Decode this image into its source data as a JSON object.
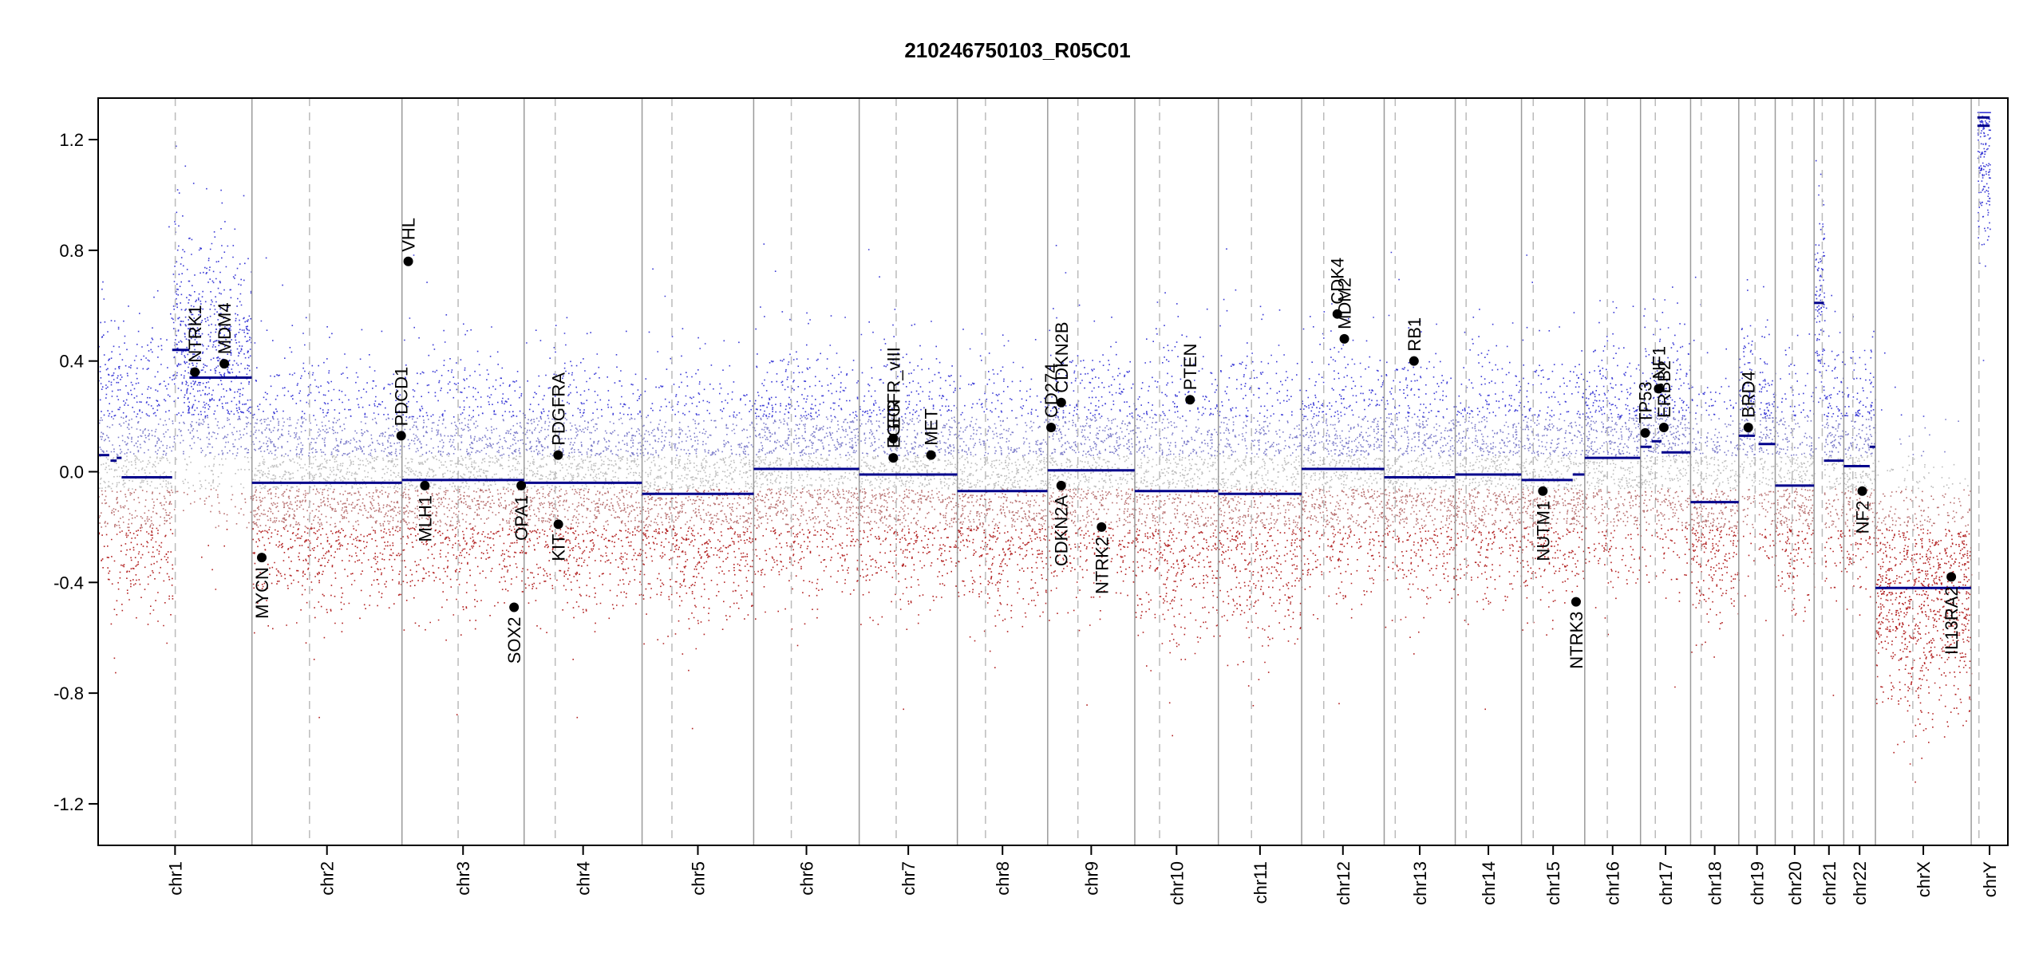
{
  "chart_data": {
    "type": "scatter",
    "title": "210246750103_R05C01",
    "xlabel": "",
    "ylabel": "",
    "ylim": [
      -1.35,
      1.35
    ],
    "y_ticks": [
      1.2,
      0.8,
      0.4,
      0.0,
      -0.4,
      -0.8,
      -1.2
    ],
    "y_tick_labels": [
      "1.2",
      "0.8",
      "0.4",
      "0.0",
      "-0.4",
      "-0.8",
      "-1.2"
    ],
    "grid": false,
    "colors": {
      "segment": "#00008b",
      "gain": "#3a3ad6",
      "loss": "#b22222",
      "neutral": "#bdbdbd",
      "boundary": "#9a9a9a",
      "centromere": "#bbbbbb"
    },
    "chromosomes": [
      {
        "name": "chr1",
        "label": "chr1",
        "start": 0.0,
        "end": 249.3,
        "centromere": 125.0
      },
      {
        "name": "chr2",
        "label": "chr2",
        "start": 249.3,
        "end": 492.5,
        "centromere": 93.3
      },
      {
        "name": "chr3",
        "label": "chr3",
        "start": 492.5,
        "end": 690.5,
        "centromere": 91.0
      },
      {
        "name": "chr4",
        "label": "chr4",
        "start": 690.5,
        "end": 881.7,
        "centromere": 50.4
      },
      {
        "name": "chr5",
        "label": "chr5",
        "start": 881.7,
        "end": 1062.6,
        "centromere": 48.4
      },
      {
        "name": "chr6",
        "label": "chr6",
        "start": 1062.6,
        "end": 1233.7,
        "centromere": 61.0
      },
      {
        "name": "chr7",
        "label": "chr7",
        "start": 1233.7,
        "end": 1392.8,
        "centromere": 59.9
      },
      {
        "name": "chr8",
        "label": "chr8",
        "start": 1392.8,
        "end": 1539.2,
        "centromere": 45.6
      },
      {
        "name": "chr9",
        "label": "chr9",
        "start": 1539.2,
        "end": 1680.4,
        "centromere": 49.0
      },
      {
        "name": "chr10",
        "label": "chr10",
        "start": 1680.4,
        "end": 1815.9,
        "centromere": 40.2
      },
      {
        "name": "chr11",
        "label": "chr11",
        "start": 1815.9,
        "end": 1950.9,
        "centromere": 53.7
      },
      {
        "name": "chr12",
        "label": "chr12",
        "start": 1950.9,
        "end": 2084.7,
        "centromere": 35.8
      },
      {
        "name": "chr13",
        "label": "chr13",
        "start": 2084.7,
        "end": 2199.9,
        "centromere": 17.9
      },
      {
        "name": "chr14",
        "label": "chr14",
        "start": 2199.9,
        "end": 2307.3,
        "centromere": 17.6
      },
      {
        "name": "chr15",
        "label": "chr15",
        "start": 2307.3,
        "end": 2409.8,
        "centromere": 19.0
      },
      {
        "name": "chr16",
        "label": "chr16",
        "start": 2409.8,
        "end": 2500.2,
        "centromere": 36.6
      },
      {
        "name": "chr17",
        "label": "chr17",
        "start": 2500.2,
        "end": 2581.4,
        "centromere": 24.0
      },
      {
        "name": "chr18",
        "label": "chr18",
        "start": 2581.4,
        "end": 2659.5,
        "centromere": 17.2
      },
      {
        "name": "chr19",
        "label": "chr19",
        "start": 2659.5,
        "end": 2718.6,
        "centromere": 26.5
      },
      {
        "name": "chr20",
        "label": "chr20",
        "start": 2718.6,
        "end": 2781.6,
        "centromere": 27.5
      },
      {
        "name": "chr21",
        "label": "chr21",
        "start": 2781.6,
        "end": 2829.7,
        "centromere": 13.2
      },
      {
        "name": "chr22",
        "label": "chr22",
        "start": 2829.7,
        "end": 2881.0,
        "centromere": 14.7
      },
      {
        "name": "chrX",
        "label": "chrX",
        "start": 2881.0,
        "end": 3036.3,
        "centromere": 60.6
      },
      {
        "name": "chrY",
        "label": "chrY",
        "start": 3036.3,
        "end": 3095.7,
        "centromere": 12.5
      }
    ],
    "segments": [
      {
        "chr": "chr1",
        "start": 0,
        "end": 18,
        "value": 0.06
      },
      {
        "chr": "chr1",
        "start": 20,
        "end": 30,
        "value": 0.04
      },
      {
        "chr": "chr1",
        "start": 30,
        "end": 38,
        "value": 0.05
      },
      {
        "chr": "chr1",
        "start": 38,
        "end": 120,
        "value": -0.02
      },
      {
        "chr": "chr1",
        "start": 120,
        "end": 148,
        "value": 0.44
      },
      {
        "chr": "chr1",
        "start": 148,
        "end": 249,
        "value": 0.34
      },
      {
        "chr": "chr2",
        "start": 0,
        "end": 243,
        "value": -0.04
      },
      {
        "chr": "chr3",
        "start": 0,
        "end": 198,
        "value": -0.03
      },
      {
        "chr": "chr4",
        "start": 0,
        "end": 191,
        "value": -0.04
      },
      {
        "chr": "chr5",
        "start": 0,
        "end": 181,
        "value": -0.08
      },
      {
        "chr": "chr6",
        "start": 0,
        "end": 171,
        "value": 0.01
      },
      {
        "chr": "chr7",
        "start": 0,
        "end": 159,
        "value": -0.01
      },
      {
        "chr": "chr8",
        "start": 0,
        "end": 146,
        "value": -0.07
      },
      {
        "chr": "chr9",
        "start": 0,
        "end": 141,
        "value": 0.005
      },
      {
        "chr": "chr10",
        "start": 0,
        "end": 135,
        "value": -0.07
      },
      {
        "chr": "chr11",
        "start": 0,
        "end": 135,
        "value": -0.08
      },
      {
        "chr": "chr12",
        "start": 0,
        "end": 134,
        "value": 0.01
      },
      {
        "chr": "chr13",
        "start": 0,
        "end": 115,
        "value": -0.02
      },
      {
        "chr": "chr14",
        "start": 0,
        "end": 107,
        "value": -0.01
      },
      {
        "chr": "chr15",
        "start": 0,
        "end": 83,
        "value": -0.03
      },
      {
        "chr": "chr15",
        "start": 83,
        "end": 102,
        "value": -0.01
      },
      {
        "chr": "chr16",
        "start": 0,
        "end": 90,
        "value": 0.05
      },
      {
        "chr": "chr17",
        "start": 0,
        "end": 18,
        "value": 0.09
      },
      {
        "chr": "chr17",
        "start": 18,
        "end": 34,
        "value": 0.11
      },
      {
        "chr": "chr17",
        "start": 34,
        "end": 81,
        "value": 0.07
      },
      {
        "chr": "chr18",
        "start": 0,
        "end": 78,
        "value": -0.11
      },
      {
        "chr": "chr19",
        "start": 0,
        "end": 26,
        "value": 0.13
      },
      {
        "chr": "chr19",
        "start": 32,
        "end": 59,
        "value": 0.1
      },
      {
        "chr": "chr20",
        "start": 0,
        "end": 63,
        "value": -0.05
      },
      {
        "chr": "chr21",
        "start": 0,
        "end": 16,
        "value": 0.61
      },
      {
        "chr": "chr21",
        "start": 16,
        "end": 48,
        "value": 0.04
      },
      {
        "chr": "chr22",
        "start": 0,
        "end": 42,
        "value": 0.02
      },
      {
        "chr": "chr22",
        "start": 42,
        "end": 51,
        "value": 0.09
      },
      {
        "chr": "chrX",
        "start": 0,
        "end": 155,
        "value": -0.42
      },
      {
        "chr": "chrY",
        "start": 10,
        "end": 30,
        "value": 1.28
      },
      {
        "chr": "chrY",
        "start": 10,
        "end": 30,
        "value": 1.25
      }
    ],
    "genes": [
      {
        "name": "NTRK1",
        "chr": "chr1",
        "pos": 156.8,
        "value": 0.36,
        "label_side": "above"
      },
      {
        "name": "MDM4",
        "chr": "chr1",
        "pos": 204.5,
        "value": 0.39,
        "label_side": "above"
      },
      {
        "name": "MYCN",
        "chr": "chr2",
        "pos": 15.9,
        "value": -0.31,
        "label_side": "below"
      },
      {
        "name": "PDCD1",
        "chr": "chr2",
        "pos": 241.9,
        "value": 0.13,
        "label_side": "above"
      },
      {
        "name": "VHL",
        "chr": "chr3",
        "pos": 10.2,
        "value": 0.76,
        "label_side": "above"
      },
      {
        "name": "MLH1",
        "chr": "chr3",
        "pos": 37.1,
        "value": -0.05,
        "label_side": "below"
      },
      {
        "name": "SOX2",
        "chr": "chr3",
        "pos": 181.7,
        "value": -0.49,
        "label_side": "below"
      },
      {
        "name": "OPA1",
        "chr": "chr3",
        "pos": 193.3,
        "value": -0.05,
        "label_side": "below"
      },
      {
        "name": "PDGFRA",
        "chr": "chr4",
        "pos": 55.1,
        "value": 0.06,
        "label_side": "above"
      },
      {
        "name": "KIT",
        "chr": "chr4",
        "pos": 55.5,
        "value": -0.19,
        "label_side": "below"
      },
      {
        "name": "EGFR",
        "chr": "chr7",
        "pos": 55.2,
        "value": 0.05,
        "label_side": "above"
      },
      {
        "name": "EGFR_vIII",
        "chr": "chr7",
        "pos": 55.2,
        "value": 0.12,
        "label_side": "above"
      },
      {
        "name": "MET",
        "chr": "chr7",
        "pos": 116.4,
        "value": 0.06,
        "label_side": "above"
      },
      {
        "name": "CD274",
        "chr": "chr9",
        "pos": 5.5,
        "value": 0.16,
        "label_side": "above"
      },
      {
        "name": "CDKN2B",
        "chr": "chr9",
        "pos": 22.0,
        "value": 0.25,
        "label_side": "above"
      },
      {
        "name": "CDKN2A",
        "chr": "chr9",
        "pos": 21.9,
        "value": -0.05,
        "label_side": "below"
      },
      {
        "name": "NTRK2",
        "chr": "chr9",
        "pos": 87.3,
        "value": -0.2,
        "label_side": "below"
      },
      {
        "name": "PTEN",
        "chr": "chr10",
        "pos": 89.6,
        "value": 0.26,
        "label_side": "above"
      },
      {
        "name": "CDK4",
        "chr": "chr12",
        "pos": 57.8,
        "value": 0.57,
        "label_side": "above"
      },
      {
        "name": "MDM2",
        "chr": "chr12",
        "pos": 69.2,
        "value": 0.48,
        "label_side": "above"
      },
      {
        "name": "RB1",
        "chr": "chr13",
        "pos": 48.3,
        "value": 0.4,
        "label_side": "above"
      },
      {
        "name": "NUTM1",
        "chr": "chr15",
        "pos": 34.6,
        "value": -0.07,
        "label_side": "below"
      },
      {
        "name": "NTRK3",
        "chr": "chr15",
        "pos": 88.4,
        "value": -0.47,
        "label_side": "below"
      },
      {
        "name": "TP53",
        "chr": "chr17",
        "pos": 7.6,
        "value": 0.14,
        "label_side": "above"
      },
      {
        "name": "NF1",
        "chr": "chr17",
        "pos": 29.4,
        "value": 0.3,
        "label_side": "above"
      },
      {
        "name": "ERBB2",
        "chr": "chr17",
        "pos": 37.8,
        "value": 0.16,
        "label_side": "above"
      },
      {
        "name": "BRD4",
        "chr": "chr19",
        "pos": 15.4,
        "value": 0.16,
        "label_side": "above"
      },
      {
        "name": "NF2",
        "chr": "chr22",
        "pos": 30.0,
        "value": -0.07,
        "label_side": "below"
      },
      {
        "name": "IL13RA2",
        "chr": "chrX",
        "pos": 123.0,
        "value": -0.38,
        "label_side": "below"
      }
    ]
  }
}
